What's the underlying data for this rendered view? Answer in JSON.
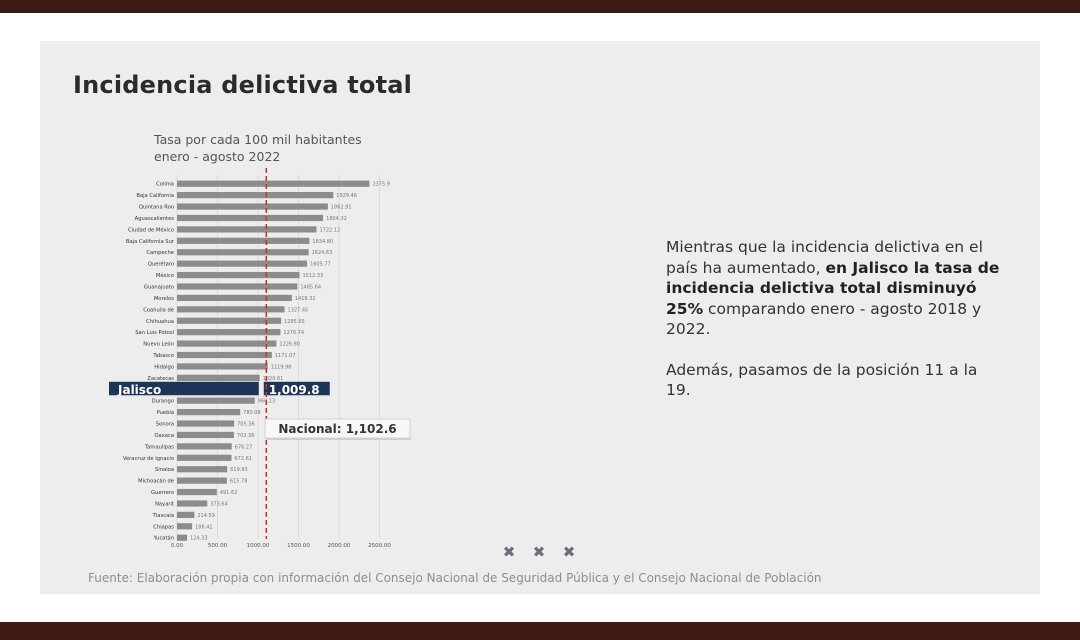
{
  "slide": {
    "title": "Incidencia delictiva total",
    "subtitle_line1": "Tasa por cada 100 mil habitantes",
    "subtitle_line2": "enero - agosto 2022",
    "paragraph1_pre": "Mientras que la incidencia delictiva en el país ha aumentado, ",
    "paragraph1_bold": "en Jalisco la tasa de incidencia delictiva total disminuyó 25%",
    "paragraph1_post": " comparando enero - agosto 2018 y 2022.",
    "paragraph2": "Además, pasamos de la posición 11 a la 19.",
    "source": "Fuente: Elaboración propia con información del Consejo Nacional de Seguridad Pública y el Consejo Nacional de Población",
    "nav_icons": [
      "close-icon",
      "close-icon",
      "close-icon"
    ]
  },
  "colors": {
    "frame": "#3d1a14",
    "bar": "#8c8c8c",
    "highlight": "#1f3557",
    "national_line": "#c0392b"
  },
  "chart_data": {
    "type": "bar",
    "orientation": "horizontal",
    "categories": [
      "Colima",
      "Baja California",
      "Quintana Roo",
      "Aguascalientes",
      "Ciudad de México",
      "Baja California Sur",
      "Campeche",
      "Querétaro",
      "México",
      "Guanajuato",
      "Morelos",
      "Coahuila de",
      "Chihuahua",
      "San Luis Potosí",
      "Nuevo León",
      "Tabasco",
      "Hidalgo",
      "Zacatecas",
      "Jalisco",
      "Durango",
      "Puebla",
      "Sonora",
      "Oaxaca",
      "Tamaulipas",
      "Veracruz de Ignacio",
      "Sinaloa",
      "Michoacán de",
      "Guerrero",
      "Nayarit",
      "Tlaxcala",
      "Chiapas",
      "Yucatán"
    ],
    "values": [
      2375.9,
      1929.46,
      1862.91,
      1804.32,
      1722.12,
      1634.8,
      1624.63,
      1605.77,
      1512.33,
      1485.64,
      1418.32,
      1327.45,
      1285.65,
      1276.74,
      1226.8,
      1171.07,
      1119.98,
      1020.61,
      1009.8,
      960.13,
      780.08,
      705.36,
      702.36,
      676.27,
      672.61,
      619.93,
      615.78,
      491.62,
      373.64,
      214.59,
      186.41,
      124.33
    ],
    "value_labels": [
      "2375.9",
      "1929.46",
      "1862.91",
      "1804.32",
      "1722.12",
      "1634.80",
      "1624.63",
      "1605.77",
      "1512.33",
      "1485.64",
      "1418.32",
      "1327.45",
      "1285.65",
      "1276.74",
      "1226.80",
      "1171.07",
      "1119.98",
      "1020.61",
      "",
      "960.13",
      "780.08",
      "705.36",
      "702.36",
      "676.27",
      "672.61",
      "619.93",
      "615.78",
      "491.62",
      "373.64",
      "214.59",
      "186.41",
      "124.33"
    ],
    "highlight": {
      "category": "Jalisco",
      "value": 1009.8,
      "label": "1,009.8"
    },
    "reference_line": {
      "label": "Nacional: 1,102.6",
      "value": 1102.6
    },
    "xticks": [
      "0.00",
      "500.00",
      "1000.00",
      "1500.00",
      "2000.00",
      "2500.00"
    ],
    "xtick_values": [
      0,
      500,
      1000,
      1500,
      2000,
      2500
    ],
    "xlim": [
      0,
      2500
    ],
    "grid": true
  }
}
